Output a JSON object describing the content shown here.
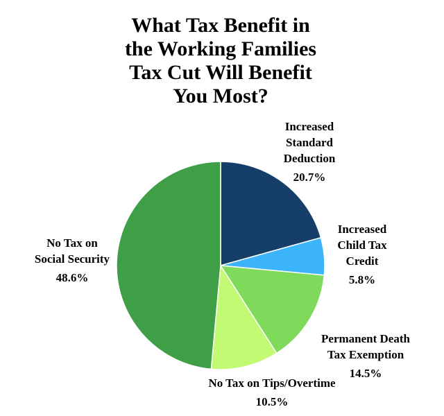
{
  "chart_data": {
    "type": "pie",
    "title_lines": [
      "What Tax Benefit in",
      "the Working Families",
      "Tax Cut Will Benefit",
      "You Most?"
    ],
    "slices": [
      {
        "id": "increased-standard-deduction",
        "label_lines": [
          "Increased",
          "Standard",
          "Deduction"
        ],
        "value": 20.7,
        "value_label": "20.7%",
        "color": "#153f69"
      },
      {
        "id": "increased-child-tax-credit",
        "label_lines": [
          "Increased",
          "Child Tax",
          "Credit"
        ],
        "value": 5.8,
        "value_label": "5.8%",
        "color": "#3cb4f9"
      },
      {
        "id": "permanent-death-tax-exemption",
        "label_lines": [
          "Permanent Death",
          "Tax Exemption"
        ],
        "value": 14.5,
        "value_label": "14.5%",
        "color": "#7fd95a"
      },
      {
        "id": "no-tax-on-tips-overtime",
        "label_lines": [
          "No Tax on Tips/Overtime"
        ],
        "value": 10.5,
        "value_label": "10.5%",
        "color": "#c2fb73"
      },
      {
        "id": "no-tax-on-social-security",
        "label_lines": [
          "No Tax on",
          "Social Security"
        ],
        "value": 48.6,
        "value_label": "48.6%",
        "color": "#3f9f47"
      }
    ]
  }
}
